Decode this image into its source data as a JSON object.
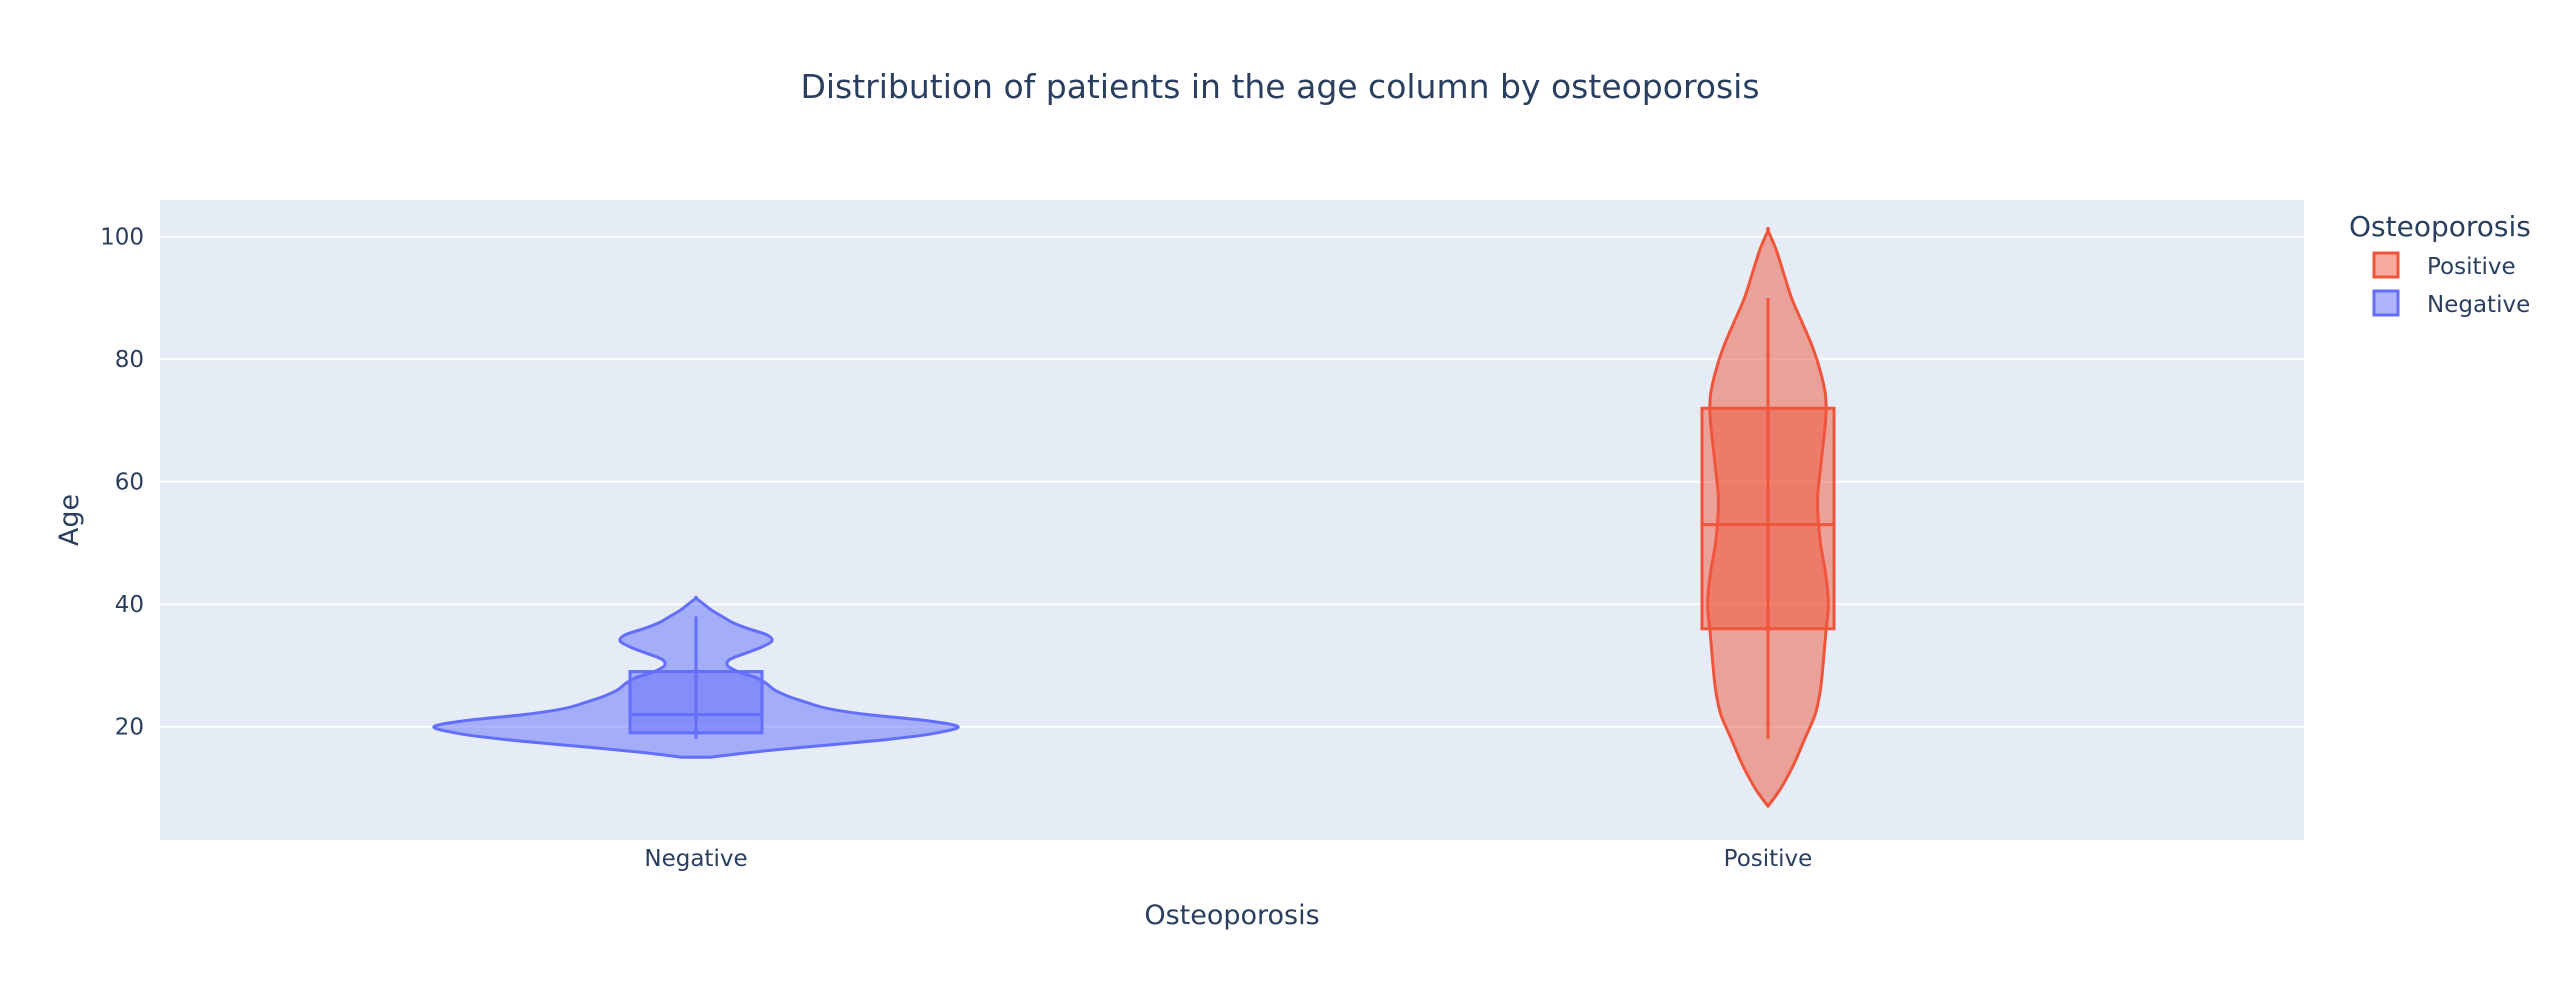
{
  "chart_data": {
    "type": "violin",
    "title": "Distribution of patients in the age column by osteoporosis",
    "xlabel": "Osteoporosis",
    "ylabel": "Age",
    "categories": [
      "Negative",
      "Positive"
    ],
    "ylim": [
      1.5,
      106
    ],
    "y_ticks": [
      20,
      40,
      60,
      80,
      100
    ],
    "grid": true,
    "legend": {
      "title": "Osteoporosis",
      "placement": "top-right",
      "entries": [
        "Positive",
        "Negative"
      ]
    },
    "series": [
      {
        "name": "Negative",
        "category": "Negative",
        "color": "#636efa",
        "box": {
          "min": 18,
          "q1": 19,
          "median": 22,
          "q3": 29,
          "max": 38
        },
        "density": [
          [
            15,
            0.05
          ],
          [
            16,
            0.25
          ],
          [
            17,
            0.5
          ],
          [
            18,
            0.75
          ],
          [
            19,
            0.92
          ],
          [
            20,
            1.0
          ],
          [
            21,
            0.88
          ],
          [
            22,
            0.65
          ],
          [
            23,
            0.5
          ],
          [
            24,
            0.42
          ],
          [
            25,
            0.35
          ],
          [
            26,
            0.3
          ],
          [
            27,
            0.27
          ],
          [
            28,
            0.23
          ],
          [
            29,
            0.16
          ],
          [
            30,
            0.12
          ],
          [
            31,
            0.13
          ],
          [
            32,
            0.19
          ],
          [
            33,
            0.25
          ],
          [
            34,
            0.29
          ],
          [
            35,
            0.27
          ],
          [
            36,
            0.2
          ],
          [
            37,
            0.14
          ],
          [
            38,
            0.1
          ],
          [
            39,
            0.06
          ],
          [
            40,
            0.03
          ],
          [
            41,
            0.0
          ]
        ]
      },
      {
        "name": "Positive",
        "category": "Positive",
        "color": "#ef553b",
        "box": {
          "min": 18,
          "q1": 36,
          "median": 53,
          "q3": 72,
          "max": 90
        },
        "density": [
          [
            7,
            0.0
          ],
          [
            10,
            0.05
          ],
          [
            14,
            0.1
          ],
          [
            18,
            0.14
          ],
          [
            22,
            0.18
          ],
          [
            26,
            0.2
          ],
          [
            30,
            0.21
          ],
          [
            35,
            0.22
          ],
          [
            40,
            0.23
          ],
          [
            45,
            0.22
          ],
          [
            50,
            0.2
          ],
          [
            55,
            0.19
          ],
          [
            58,
            0.19
          ],
          [
            62,
            0.2
          ],
          [
            66,
            0.21
          ],
          [
            70,
            0.22
          ],
          [
            74,
            0.22
          ],
          [
            78,
            0.2
          ],
          [
            82,
            0.17
          ],
          [
            86,
            0.13
          ],
          [
            90,
            0.09
          ],
          [
            94,
            0.06
          ],
          [
            98,
            0.03
          ],
          [
            101,
            0.0
          ]
        ]
      }
    ]
  }
}
